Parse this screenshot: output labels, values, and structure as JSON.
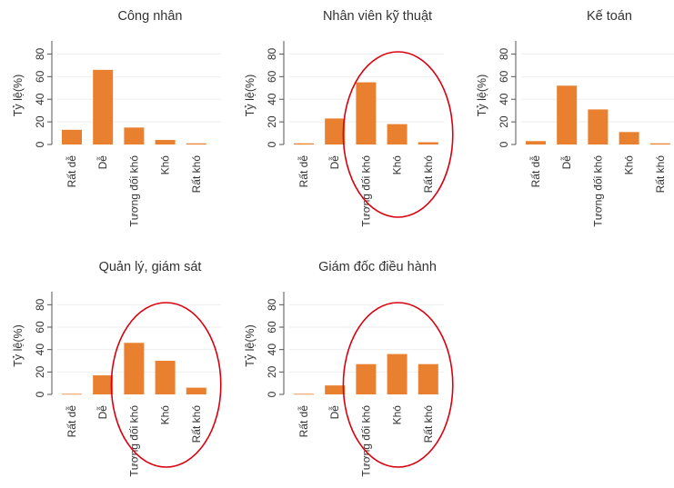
{
  "chart_data": [
    {
      "type": "bar",
      "title": "Công nhân",
      "ylabel": "Tỷ lệ(%)",
      "categories": [
        "Rất dễ",
        "Dễ",
        "Tương đối khó",
        "Khó",
        "Rất khó"
      ],
      "values": [
        13,
        66,
        15,
        4,
        1
      ],
      "ylim": [
        0,
        90
      ],
      "yticks": [
        0,
        20,
        40,
        60,
        80
      ],
      "grid": true,
      "highlight": null
    },
    {
      "type": "bar",
      "title": "Nhân viên kỹ thuật",
      "ylabel": "Tỷ lệ(%)",
      "categories": [
        "Rất dễ",
        "Dễ",
        "Tương đối khó",
        "Khó",
        "Rất khó"
      ],
      "values": [
        1,
        23,
        55,
        18,
        2
      ],
      "ylim": [
        0,
        90
      ],
      "yticks": [
        0,
        20,
        40,
        60,
        80
      ],
      "grid": true,
      "highlight": [
        2,
        4
      ]
    },
    {
      "type": "bar",
      "title": "Kế toán",
      "ylabel": "Tỷ lệ(%)",
      "categories": [
        "Rất dễ",
        "Dễ",
        "Tương đối khó",
        "Khó",
        "Rất khó"
      ],
      "values": [
        3,
        52,
        31,
        11,
        1
      ],
      "ylim": [
        0,
        90
      ],
      "yticks": [
        0,
        20,
        40,
        60,
        80
      ],
      "grid": true,
      "highlight": null
    },
    {
      "type": "bar",
      "title": "Quản lý, giám sát",
      "ylabel": "Tỷ lệ(%)",
      "categories": [
        "Rất dễ",
        "Dễ",
        "Tương đối khó",
        "Khó",
        "Rất khó"
      ],
      "values": [
        0.5,
        17,
        46,
        30,
        6
      ],
      "ylim": [
        0,
        90
      ],
      "yticks": [
        0,
        20,
        40,
        60,
        80
      ],
      "grid": true,
      "highlight": [
        2,
        4
      ]
    },
    {
      "type": "bar",
      "title": "Giám đốc điều hành",
      "ylabel": "Tỷ lệ(%)",
      "categories": [
        "Rất dễ",
        "Dễ",
        "Tương đối khó",
        "Khó",
        "Rất khó"
      ],
      "values": [
        0.5,
        8,
        27,
        36,
        27
      ],
      "ylim": [
        0,
        90
      ],
      "yticks": [
        0,
        20,
        40,
        60,
        80
      ],
      "grid": true,
      "highlight": [
        2,
        4
      ]
    }
  ],
  "colors": {
    "bar": "#e8802f",
    "axis": "#555555",
    "grid": "#eeeeee",
    "highlight_ellipse": "#d9000f"
  }
}
